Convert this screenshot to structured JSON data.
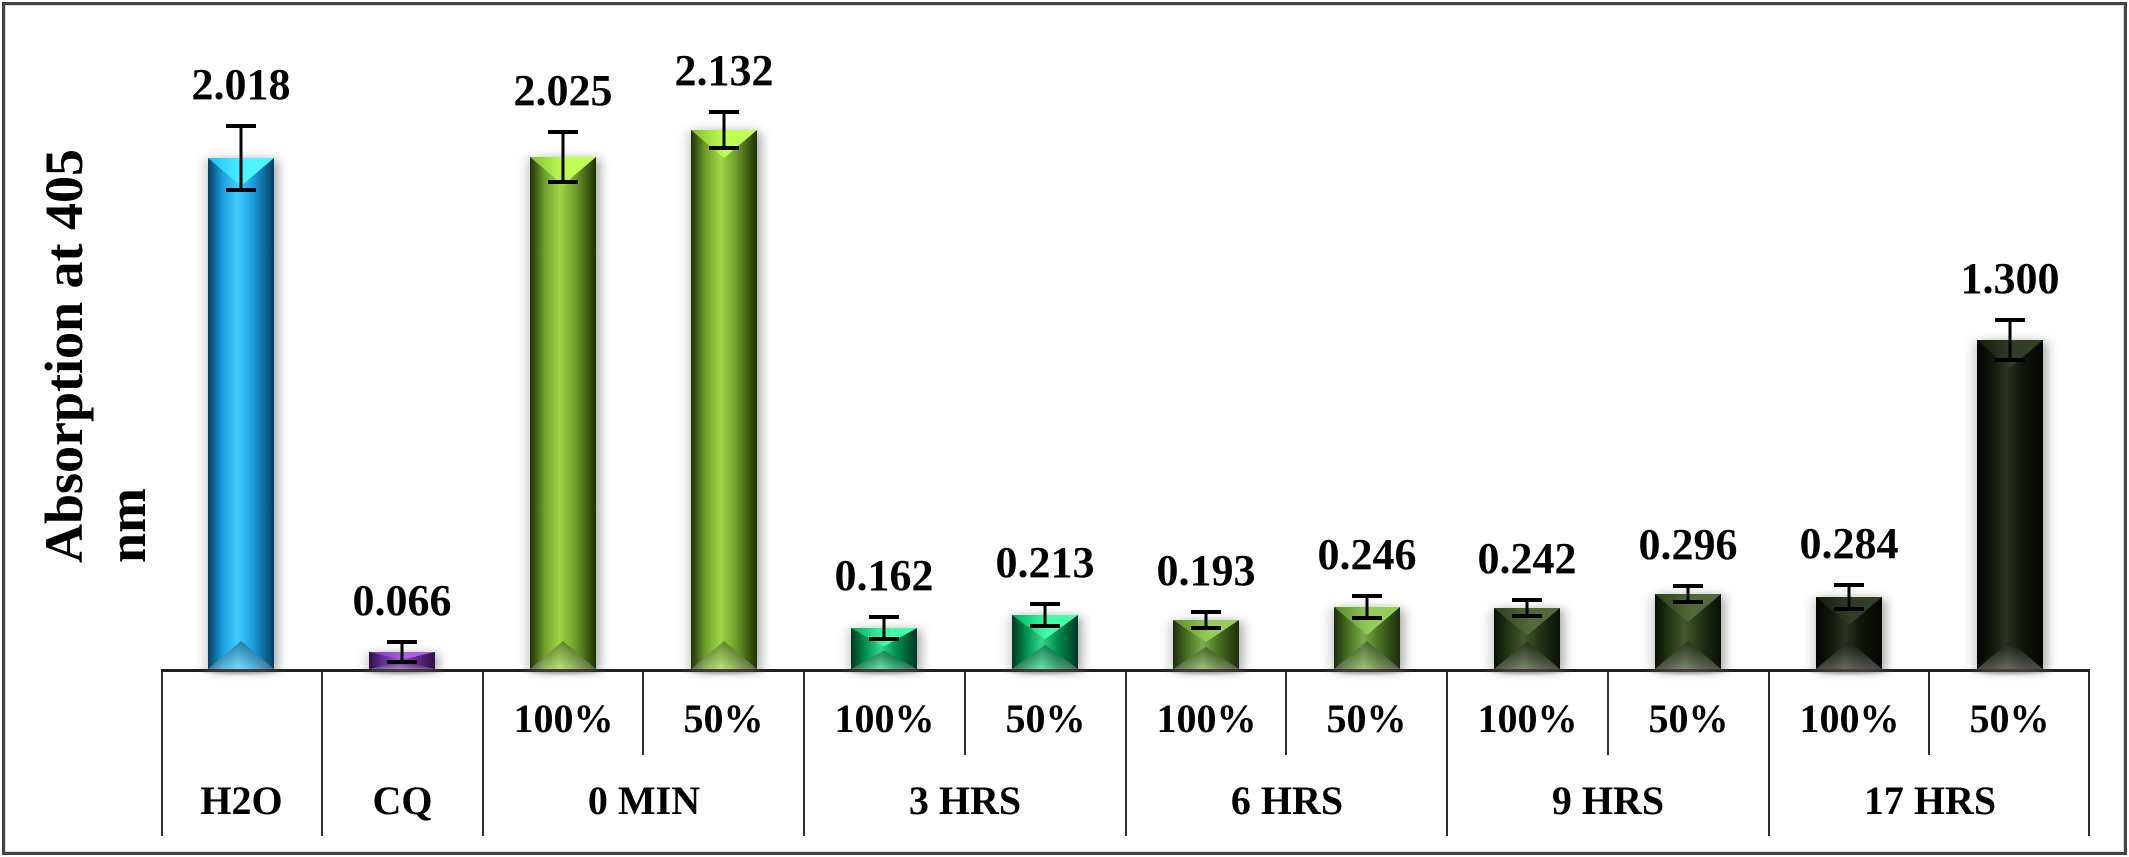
{
  "figure": {
    "background": "#ffffff",
    "border_color": "#454545"
  },
  "chart_data": {
    "type": "bar",
    "title": "",
    "ylabel_line1": "Absorption at 405",
    "ylabel_line2": "nm",
    "xlabel": "",
    "ylim": [
      0,
      2.54
    ],
    "grid": false,
    "legend": "none",
    "error_bars": true,
    "value_labels_shown": true,
    "groups": [
      {
        "label": "H2O",
        "bars": [
          {
            "sublabel": "",
            "value": 2.018,
            "display": "2.018",
            "error": 0.135,
            "color_key": "blue"
          }
        ]
      },
      {
        "label": "CQ",
        "bars": [
          {
            "sublabel": "",
            "value": 0.066,
            "display": "0.066",
            "error": 0.047,
            "color_key": "purple"
          }
        ]
      },
      {
        "label": "0 MIN",
        "bars": [
          {
            "sublabel": "100%",
            "value": 2.025,
            "display": "2.025",
            "error": 0.105,
            "color_key": "yellow_green"
          },
          {
            "sublabel": "50%",
            "value": 2.132,
            "display": "2.132",
            "error": 0.08,
            "color_key": "yellow_green"
          }
        ]
      },
      {
        "label": "3 HRS",
        "bars": [
          {
            "sublabel": "100%",
            "value": 0.162,
            "display": "0.162",
            "error": 0.05,
            "color_key": "emerald"
          },
          {
            "sublabel": "50%",
            "value": 0.213,
            "display": "0.213",
            "error": 0.05,
            "color_key": "emerald"
          }
        ]
      },
      {
        "label": "6 HRS",
        "bars": [
          {
            "sublabel": "100%",
            "value": 0.193,
            "display": "0.193",
            "error": 0.04,
            "color_key": "olive_green"
          },
          {
            "sublabel": "50%",
            "value": 0.246,
            "display": "0.246",
            "error": 0.05,
            "color_key": "olive_green"
          }
        ]
      },
      {
        "label": "9 HRS",
        "bars": [
          {
            "sublabel": "100%",
            "value": 0.242,
            "display": "0.242",
            "error": 0.04,
            "color_key": "dark_green"
          },
          {
            "sublabel": "50%",
            "value": 0.296,
            "display": "0.296",
            "error": 0.04,
            "color_key": "dark_green"
          }
        ]
      },
      {
        "label": "17 HRS",
        "bars": [
          {
            "sublabel": "100%",
            "value": 0.284,
            "display": "0.284",
            "error": 0.055,
            "color_key": "near_black"
          },
          {
            "sublabel": "50%",
            "value": 1.3,
            "display": "1.300",
            "error": 0.085,
            "color_key": "near_black"
          }
        ]
      }
    ],
    "colors": {
      "blue": {
        "edge": "#063e63",
        "mid": "#1b9fdd",
        "light": "#41ccff"
      },
      "purple": {
        "edge": "#2e0e45",
        "mid": "#6a2d96",
        "light": "#9050c0"
      },
      "yellow_green": {
        "edge": "#1d3206",
        "mid": "#6f9f2a",
        "light": "#a2d747"
      },
      "emerald": {
        "edge": "#003822",
        "mid": "#00914f",
        "light": "#35d68b"
      },
      "olive_green": {
        "edge": "#1b2d0b",
        "mid": "#4a7323",
        "light": "#7cab4b"
      },
      "dark_green": {
        "edge": "#0a0f05",
        "mid": "#253615",
        "light": "#44582e"
      },
      "near_black": {
        "edge": "#020402",
        "mid": "#11170b",
        "light": "#2a3320"
      }
    }
  }
}
